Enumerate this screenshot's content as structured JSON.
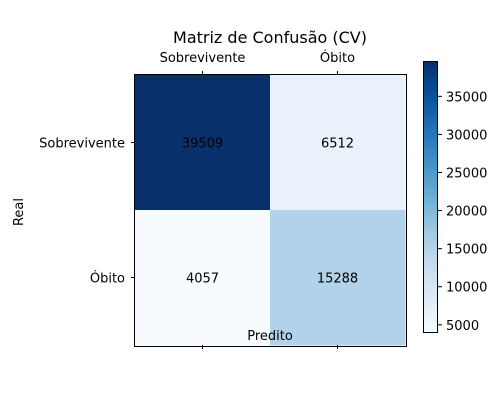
{
  "chart_data": {
    "type": "heatmap",
    "title": "Matriz de Confusão (CV)",
    "xlabel": "Predito",
    "ylabel": "Real",
    "x_categories": [
      "Sobrevivente",
      "Óbito"
    ],
    "y_categories": [
      "Sobrevivente",
      "Óbito"
    ],
    "values": [
      [
        39509,
        6512
      ],
      [
        4057,
        15288
      ]
    ],
    "value_labels": [
      [
        "39509",
        "6512"
      ],
      [
        "4057",
        "15288"
      ]
    ],
    "colormap": "Blues",
    "color_range": [
      4057,
      39509
    ],
    "colorbar_ticks": [
      5000,
      10000,
      15000,
      20000,
      25000,
      30000,
      35000
    ],
    "colorbar_tick_labels": [
      "5000",
      "10000",
      "15000",
      "20000",
      "25000",
      "30000",
      "35000"
    ],
    "x_tick_position": "top",
    "grid": false
  }
}
